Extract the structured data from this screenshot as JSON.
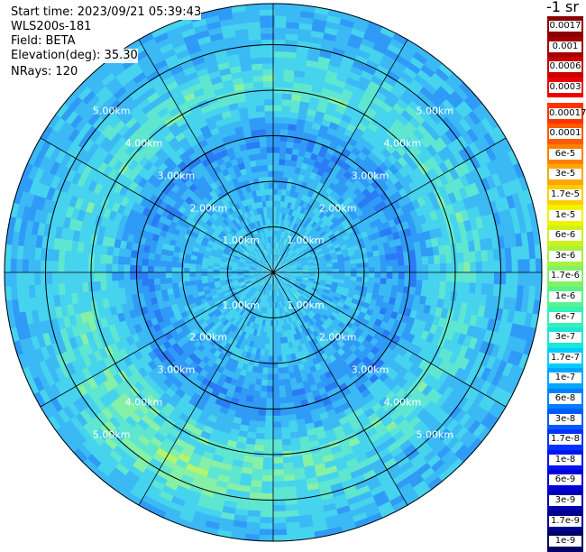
{
  "header": {
    "start_time": "Start time: 2023/09/21 05:39:43",
    "instrument": "WLS200s-181",
    "field": "Field: BETA",
    "elevation": "Elevation(deg): 35.30",
    "nrays": "NRays: 120"
  },
  "ppi": {
    "max_range_km": 5.9,
    "ring_labels": [
      "1.00km",
      "2.00km",
      "3.00km",
      "4.00km",
      "5.00km"
    ],
    "spokes": 12
  },
  "legend": {
    "title": "-1 sr",
    "upper_block": [
      {
        "label": "0.0017",
        "color": "#8b0000"
      },
      {
        "label": "0.001",
        "color": "#a30000"
      },
      {
        "label": "0.0006",
        "color": "#c80000"
      },
      {
        "label": "0.0003",
        "color": "#ef0000"
      }
    ],
    "main_block": [
      {
        "label": "0.00017",
        "color": "#ff3300"
      },
      {
        "label": "0.0001",
        "color": "#ff5a00"
      },
      {
        "label": "6e-5",
        "color": "#ff8000"
      },
      {
        "label": "3e-5",
        "color": "#ffa600"
      },
      {
        "label": "1.7e-5",
        "color": "#ffcc00"
      },
      {
        "label": "1e-5",
        "color": "#f2f200"
      },
      {
        "label": "6e-6",
        "color": "#ccf21a"
      },
      {
        "label": "3e-6",
        "color": "#a6f23f"
      },
      {
        "label": "1.7e-6",
        "color": "#80f266"
      },
      {
        "label": "1e-6",
        "color": "#59f28c"
      },
      {
        "label": "6e-7",
        "color": "#33f2b3"
      },
      {
        "label": "3e-7",
        "color": "#1ae6d9"
      },
      {
        "label": "1.7e-7",
        "color": "#00ccff"
      },
      {
        "label": "1e-7",
        "color": "#00a6ff"
      },
      {
        "label": "6e-8",
        "color": "#0080ff"
      },
      {
        "label": "3e-8",
        "color": "#005aff"
      },
      {
        "label": "1.7e-8",
        "color": "#0033ff"
      },
      {
        "label": "1e-8",
        "color": "#0014f2"
      },
      {
        "label": "6e-9",
        "color": "#0000d9"
      },
      {
        "label": "3e-9",
        "color": "#0000b3"
      },
      {
        "label": "1.7e-9",
        "color": "#00008c"
      },
      {
        "label": "1e-9",
        "color": "#000066"
      }
    ]
  }
}
